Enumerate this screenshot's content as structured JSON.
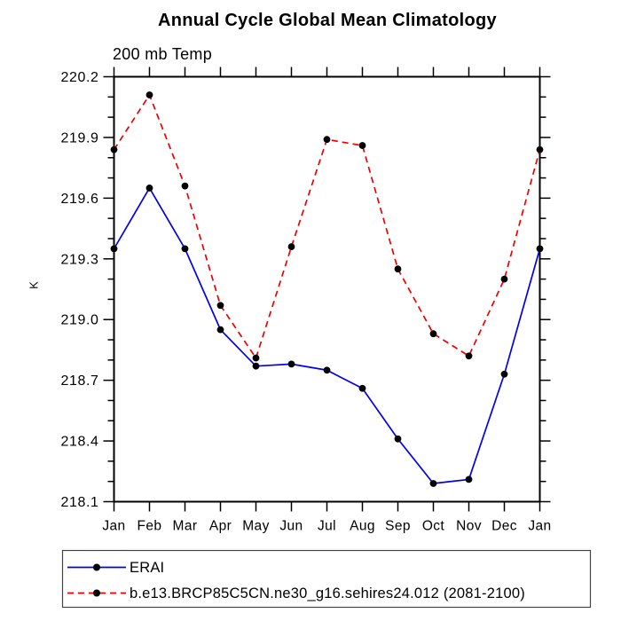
{
  "title": "Annual Cycle Global Mean Climatology",
  "subtitle": "200 mb Temp",
  "ylabel": "K",
  "colors": {
    "erai_line": "#0000ee",
    "model_line": "#ee0000",
    "marker": "#000000",
    "axis": "#000000",
    "legend_border": "#444444",
    "background": "#ffffff"
  },
  "chart_data": {
    "type": "line",
    "title": "Annual Cycle Global Mean Climatology",
    "subtitle": "200 mb Temp",
    "xlabel": "",
    "ylabel": "K",
    "categories": [
      "Jan",
      "Feb",
      "Mar",
      "Apr",
      "May",
      "Jun",
      "Jul",
      "Aug",
      "Sep",
      "Oct",
      "Nov",
      "Dec",
      "Jan"
    ],
    "series": [
      {
        "name": "ERAI",
        "color": "#0000ee",
        "line_style": "solid",
        "marker": "filled-black-circle",
        "values": [
          219.35,
          219.65,
          219.35,
          218.95,
          218.77,
          218.78,
          218.75,
          218.66,
          218.41,
          218.19,
          218.21,
          218.73,
          219.35
        ]
      },
      {
        "name": "b.e13.BRCP85C5CN.ne30_g16.sehires24.012 (2081-2100)",
        "color": "#ee0000",
        "line_style": "dashed",
        "marker": "filled-black-circle",
        "values": [
          219.84,
          220.11,
          219.66,
          219.07,
          218.81,
          219.36,
          219.89,
          219.86,
          219.25,
          218.93,
          218.82,
          219.2,
          219.84
        ]
      }
    ],
    "ylim": [
      218.1,
      220.2
    ],
    "ytick_step": 0.3,
    "yminor_step": 0.1,
    "ytick_labels": [
      "220.2",
      "219.9",
      "219.6",
      "219.3",
      "219.0",
      "218.7",
      "218.4",
      "218.1"
    ],
    "grid": false,
    "legend_position": "bottom-left",
    "axis_ticks": "outward on all four sides, months on top and bottom, minor ticks every 0.1 K left and right"
  }
}
